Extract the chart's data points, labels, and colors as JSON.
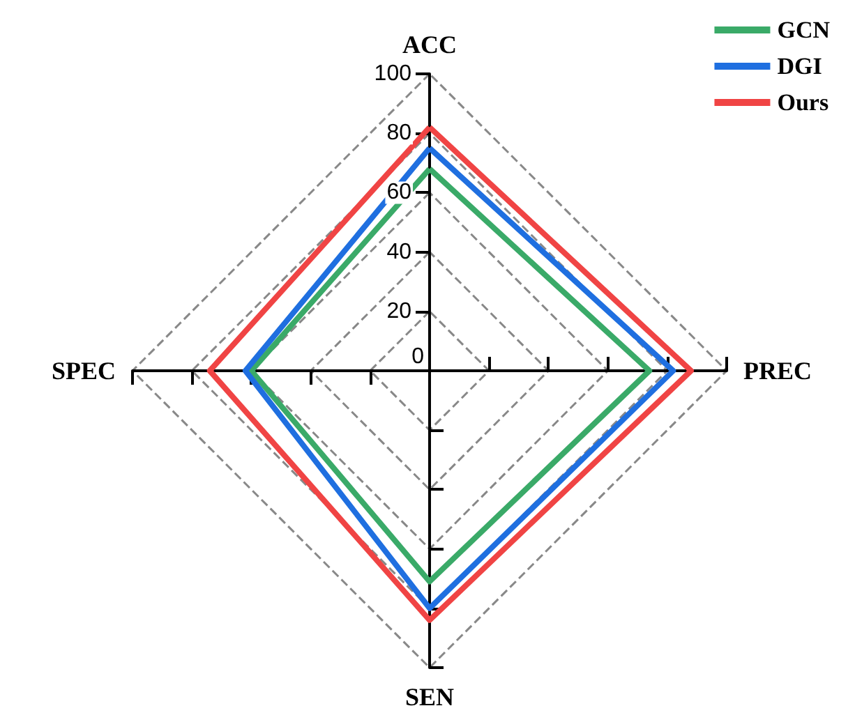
{
  "chart_data": {
    "type": "radar",
    "categories": [
      "ACC",
      "PREC",
      "SEN",
      "SPEC"
    ],
    "series": [
      {
        "name": "GCN",
        "color": "#3aaa68",
        "values": [
          68,
          74,
          71,
          60
        ]
      },
      {
        "name": "DGI",
        "color": "#1f6fe0",
        "values": [
          75,
          82,
          80,
          62
        ]
      },
      {
        "name": "Ours",
        "color": "#f04444",
        "values": [
          82,
          88,
          84,
          74
        ]
      }
    ],
    "ylim": [
      0,
      100
    ],
    "yticks": [
      0,
      20,
      40,
      60,
      80,
      100
    ],
    "grid": true,
    "legend": "top right",
    "marker": "none",
    "line_style": "solid"
  }
}
